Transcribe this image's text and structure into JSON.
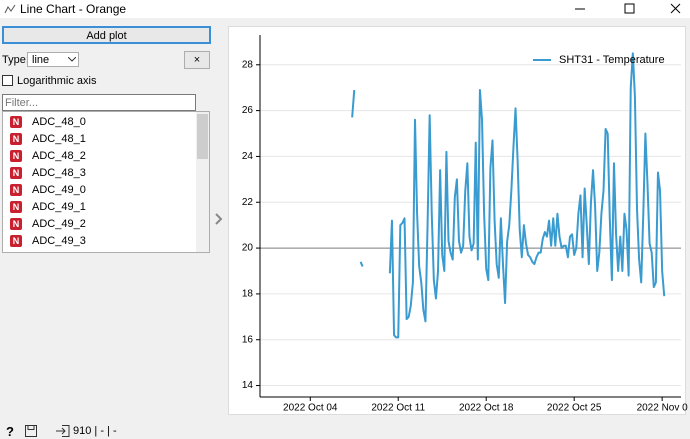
{
  "window": {
    "title": "Line Chart - Orange"
  },
  "controls": {
    "add_plot": "Add plot",
    "type_label": "Type:",
    "type_value": "line",
    "remove": "×",
    "log_axis": "Logarithmic axis",
    "filter_placeholder": "Filter...",
    "variable_icon": "N"
  },
  "variables": [
    "ADC_48_0",
    "ADC_48_1",
    "ADC_48_2",
    "ADC_48_3",
    "ADC_49_0",
    "ADC_49_1",
    "ADC_49_2",
    "ADC_49_3"
  ],
  "status": {
    "help": "?",
    "count": "910 | - | -"
  },
  "chart_data": {
    "type": "line",
    "grid": true,
    "legend": "upper right",
    "reference_line": 20,
    "xlim": [
      "2022-09-30 00:00",
      "2022-11-02 12:00"
    ],
    "xticks": [
      {
        "value": "2022-10-04 00:00",
        "label": "2022 Oct 04"
      },
      {
        "value": "2022-10-11 00:00",
        "label": "2022 Oct 11"
      },
      {
        "value": "2022-10-18 00:00",
        "label": "2022 Oct 18"
      },
      {
        "value": "2022-10-25 00:00",
        "label": "2022 Oct 25"
      },
      {
        "value": "2022-11-01 00:00",
        "label": "2022 Nov 0"
      }
    ],
    "ylim": [
      13.5,
      29.3
    ],
    "yticks": [
      14,
      16,
      18,
      20,
      22,
      24,
      26,
      28
    ],
    "x": [
      "2022-10-07 08:00",
      "2022-10-07 12:00",
      "2022-10-07 18:00",
      "2022-10-08 00:00",
      "2022-10-08 04:00",
      "2022-10-09 00:00",
      "2022-10-10 08:00",
      "2022-10-10 12:00",
      "2022-10-10 16:00",
      "2022-10-10 20:00",
      "2022-10-11 00:00",
      "2022-10-11 04:00",
      "2022-10-11 08:00",
      "2022-10-11 12:00",
      "2022-10-11 16:00",
      "2022-10-11 20:00",
      "2022-10-12 00:00",
      "2022-10-12 04:00",
      "2022-10-12 08:00",
      "2022-10-12 12:00",
      "2022-10-12 16:00",
      "2022-10-12 20:00",
      "2022-10-13 00:00",
      "2022-10-13 04:00",
      "2022-10-13 08:00",
      "2022-10-13 12:00",
      "2022-10-13 16:00",
      "2022-10-13 20:00",
      "2022-10-14 00:00",
      "2022-10-14 04:00",
      "2022-10-14 08:00",
      "2022-10-14 12:00",
      "2022-10-14 16:00",
      "2022-10-14 20:00",
      "2022-10-15 00:00",
      "2022-10-15 04:00",
      "2022-10-15 08:00",
      "2022-10-15 12:00",
      "2022-10-15 16:00",
      "2022-10-15 20:00",
      "2022-10-16 00:00",
      "2022-10-16 04:00",
      "2022-10-16 08:00",
      "2022-10-16 12:00",
      "2022-10-16 16:00",
      "2022-10-16 20:00",
      "2022-10-17 00:00",
      "2022-10-17 04:00",
      "2022-10-17 08:00",
      "2022-10-17 12:00",
      "2022-10-17 16:00",
      "2022-10-17 20:00",
      "2022-10-18 00:00",
      "2022-10-18 04:00",
      "2022-10-18 08:00",
      "2022-10-18 12:00",
      "2022-10-18 16:00",
      "2022-10-18 20:00",
      "2022-10-19 00:00",
      "2022-10-19 04:00",
      "2022-10-19 08:00",
      "2022-10-19 12:00",
      "2022-10-19 16:00",
      "2022-10-19 20:00",
      "2022-10-20 00:00",
      "2022-10-20 04:00",
      "2022-10-20 08:00",
      "2022-10-20 12:00",
      "2022-10-20 16:00",
      "2022-10-20 20:00",
      "2022-10-21 00:00",
      "2022-10-21 04:00",
      "2022-10-21 08:00",
      "2022-10-21 12:00",
      "2022-10-21 16:00",
      "2022-10-21 20:00",
      "2022-10-22 00:00",
      "2022-10-22 04:00",
      "2022-10-22 08:00",
      "2022-10-22 12:00",
      "2022-10-22 16:00",
      "2022-10-22 20:00",
      "2022-10-23 00:00",
      "2022-10-23 04:00",
      "2022-10-23 08:00",
      "2022-10-23 12:00",
      "2022-10-23 16:00",
      "2022-10-23 20:00",
      "2022-10-24 00:00",
      "2022-10-24 04:00",
      "2022-10-24 08:00",
      "2022-10-24 12:00",
      "2022-10-24 16:00",
      "2022-10-24 20:00",
      "2022-10-25 00:00",
      "2022-10-25 04:00",
      "2022-10-25 08:00",
      "2022-10-25 12:00",
      "2022-10-25 16:00",
      "2022-10-25 20:00",
      "2022-10-26 00:00",
      "2022-10-26 04:00",
      "2022-10-26 08:00",
      "2022-10-26 12:00",
      "2022-10-26 16:00",
      "2022-10-26 20:00",
      "2022-10-27 00:00",
      "2022-10-27 04:00",
      "2022-10-27 08:00",
      "2022-10-27 12:00",
      "2022-10-27 16:00",
      "2022-10-27 20:00",
      "2022-10-28 00:00",
      "2022-10-28 04:00",
      "2022-10-28 08:00",
      "2022-10-28 12:00",
      "2022-10-28 16:00",
      "2022-10-28 20:00",
      "2022-10-29 00:00",
      "2022-10-29 04:00",
      "2022-10-29 08:00",
      "2022-10-29 12:00",
      "2022-10-29 16:00",
      "2022-10-29 20:00",
      "2022-10-30 00:00",
      "2022-10-30 04:00",
      "2022-10-30 08:00",
      "2022-10-30 12:00",
      "2022-10-30 16:00",
      "2022-10-30 20:00",
      "2022-10-31 00:00",
      "2022-10-31 04:00",
      "2022-10-31 08:00",
      "2022-10-31 12:00",
      "2022-10-31 16:00",
      "2022-10-31 20:00",
      "2022-11-01 00:00",
      "2022-11-01 04:00"
    ],
    "series": [
      {
        "name": "SHT31 - Temperature",
        "color": "#3a9bd0",
        "values": [
          25.7,
          26.9,
          null,
          19.4,
          19.2,
          null,
          18.9,
          21.2,
          16.2,
          16.1,
          16.1,
          21.0,
          21.1,
          21.3,
          16.9,
          17.0,
          17.5,
          18.5,
          25.6,
          21.5,
          19.2,
          18.5,
          17.3,
          16.8,
          21.0,
          25.8,
          21.5,
          18.6,
          17.8,
          19.0,
          23.4,
          19.7,
          19.0,
          24.2,
          20.3,
          19.8,
          19.5,
          22.2,
          23.0,
          20.3,
          19.8,
          20.1,
          22.5,
          23.7,
          20.5,
          19.9,
          20.2,
          24.6,
          19.5,
          26.9,
          25.6,
          21.5,
          19.1,
          18.6,
          23.5,
          24.7,
          21.2,
          19.3,
          18.7,
          21.3,
          19.3,
          17.6,
          20.3,
          21.0,
          22.5,
          24.4,
          26.1,
          23.8,
          20.8,
          19.6,
          21.0,
          20.2,
          19.7,
          19.6,
          19.4,
          19.3,
          19.6,
          19.8,
          19.8,
          20.4,
          20.7,
          20.5,
          21.2,
          20.1,
          21.3,
          20.1,
          21.5,
          20.5,
          20.0,
          20.1,
          20.1,
          19.6,
          20.5,
          20.6,
          19.7,
          20.0,
          21.5,
          22.3,
          19.6,
          22.6,
          21.0,
          19.3,
          22.0,
          23.4,
          21.8,
          19.0,
          19.8,
          21.5,
          22.5,
          25.2,
          25.0,
          21.3,
          18.6,
          23.7,
          20.6,
          19.0,
          20.5,
          19.0,
          21.5,
          20.8,
          18.8,
          27.0,
          28.5,
          26.6,
          21.7,
          19.5,
          18.5,
          21.5,
          25.0,
          22.8,
          20.2,
          19.8,
          18.3,
          18.5,
          23.3,
          22.5,
          19.0,
          17.9
        ]
      }
    ]
  }
}
